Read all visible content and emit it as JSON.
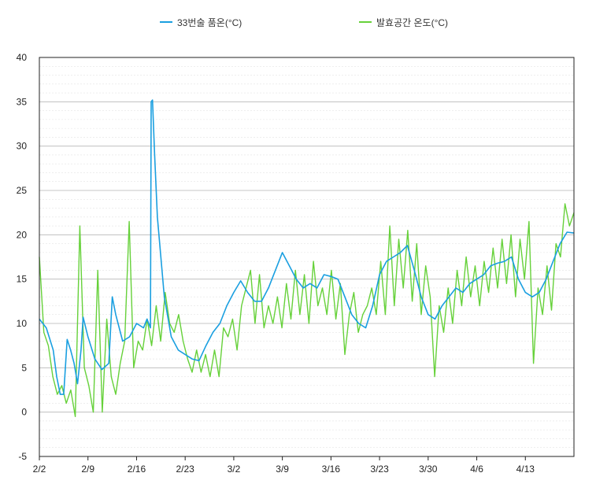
{
  "chart_data": {
    "type": "line",
    "title": "",
    "xlabel": "",
    "ylabel": "",
    "ylim": [
      -5,
      40
    ],
    "yticks": [
      -5,
      0,
      5,
      10,
      15,
      20,
      25,
      30,
      35,
      40
    ],
    "minor_grid_step": 1,
    "grid": true,
    "legend_position": "top",
    "x_domain": [
      "2/2",
      "4/20"
    ],
    "xtick_labels": [
      "2/2",
      "2/9",
      "2/16",
      "2/23",
      "3/2",
      "3/9",
      "3/16",
      "3/23",
      "3/30",
      "4/6",
      "4/13"
    ],
    "series": [
      {
        "name": "33번술 품온(°C)",
        "color": "#1a9fe0",
        "points": [
          [
            "2/2",
            10.5
          ],
          [
            "2/3",
            9.5
          ],
          [
            "2/4",
            7.0
          ],
          [
            "2/4.5",
            4.0
          ],
          [
            "2/5",
            2.0
          ],
          [
            "2/5.5",
            2.0
          ],
          [
            "2/6",
            8.2
          ],
          [
            "2/6.5",
            7.0
          ],
          [
            "2/7",
            5.5
          ],
          [
            "2/7.5",
            3.2
          ],
          [
            "2/8",
            7.0
          ],
          [
            "2/8.3",
            10.7
          ],
          [
            "2/9",
            8.5
          ],
          [
            "2/10",
            6.0
          ],
          [
            "2/11",
            4.8
          ],
          [
            "2/12",
            5.5
          ],
          [
            "2/12.5",
            13.0
          ],
          [
            "2/13",
            11.0
          ],
          [
            "2/14",
            8.0
          ],
          [
            "2/15",
            8.5
          ],
          [
            "2/16",
            10.0
          ],
          [
            "2/17",
            9.5
          ],
          [
            "2/17.5",
            10.5
          ],
          [
            "2/18",
            9.5
          ],
          [
            "2/18.1",
            35.0
          ],
          [
            "2/18.3",
            35.2
          ],
          [
            "2/18.6",
            29.0
          ],
          [
            "2/19",
            22.0
          ],
          [
            "2/20",
            13.0
          ],
          [
            "2/21",
            8.5
          ],
          [
            "2/22",
            7.0
          ],
          [
            "2/23",
            6.5
          ],
          [
            "2/24",
            6.0
          ],
          [
            "2/25",
            5.8
          ],
          [
            "2/26",
            7.5
          ],
          [
            "2/27",
            9.0
          ],
          [
            "2/28",
            10.0
          ],
          [
            "3/1",
            12.0
          ],
          [
            "3/2",
            13.5
          ],
          [
            "3/3",
            14.8
          ],
          [
            "3/4",
            13.5
          ],
          [
            "3/5",
            12.5
          ],
          [
            "3/6",
            12.5
          ],
          [
            "3/7",
            14.0
          ],
          [
            "3/8",
            16.0
          ],
          [
            "3/9",
            18.0
          ],
          [
            "3/10",
            16.5
          ],
          [
            "3/11",
            15.0
          ],
          [
            "3/12",
            14.0
          ],
          [
            "3/13",
            14.5
          ],
          [
            "3/14",
            14.0
          ],
          [
            "3/15",
            15.5
          ],
          [
            "3/16",
            15.3
          ],
          [
            "3/17",
            15.0
          ],
          [
            "3/18",
            13.0
          ],
          [
            "3/19",
            11.0
          ],
          [
            "3/20",
            10.0
          ],
          [
            "3/21",
            9.5
          ],
          [
            "3/22",
            12.0
          ],
          [
            "3/23",
            15.5
          ],
          [
            "3/24",
            17.0
          ],
          [
            "3/25",
            17.5
          ],
          [
            "3/26",
            18.0
          ],
          [
            "3/27",
            18.8
          ],
          [
            "3/28",
            16.0
          ],
          [
            "3/29",
            13.0
          ],
          [
            "3/30",
            11.0
          ],
          [
            "3/31",
            10.5
          ],
          [
            "4/1",
            12.0
          ],
          [
            "4/2",
            13.0
          ],
          [
            "4/3",
            14.0
          ],
          [
            "4/4",
            13.5
          ],
          [
            "4/5",
            14.5
          ],
          [
            "4/6",
            15.0
          ],
          [
            "4/7",
            15.5
          ],
          [
            "4/8",
            16.5
          ],
          [
            "4/9",
            16.8
          ],
          [
            "4/10",
            17.0
          ],
          [
            "4/11",
            17.5
          ],
          [
            "4/12",
            15.0
          ],
          [
            "4/13",
            13.5
          ],
          [
            "4/14",
            13.0
          ],
          [
            "4/15",
            13.5
          ],
          [
            "4/16",
            15.0
          ],
          [
            "4/17",
            17.0
          ],
          [
            "4/18",
            19.0
          ],
          [
            "4/19",
            20.3
          ],
          [
            "4/20",
            20.2
          ]
        ]
      },
      {
        "name": "발효공간 온도(°C)",
        "color": "#66d13a",
        "values_daily_twice": [
          17.5,
          9.0,
          7.5,
          4.0,
          2.0,
          3.0,
          1.0,
          2.5,
          -0.5,
          21.0,
          5.0,
          3.0,
          0.0,
          16.0,
          0.0,
          10.5,
          4.0,
          2.0,
          5.5,
          8.0,
          21.5,
          5.0,
          8.0,
          7.0,
          10.5,
          7.5,
          12.0,
          8.0,
          13.5,
          10.0,
          9.0,
          11.0,
          8.0,
          6.0,
          4.5,
          7.0,
          4.5,
          6.5,
          4.0,
          7.0,
          4.0,
          9.5,
          8.5,
          10.5,
          7.0,
          12.0,
          14.0,
          16.0,
          10.0,
          15.5,
          9.5,
          12.0,
          10.0,
          13.0,
          9.5,
          14.5,
          10.5,
          16.0,
          11.0,
          15.5,
          10.0,
          17.0,
          12.0,
          14.0,
          11.0,
          16.0,
          10.5,
          14.5,
          6.5,
          11.0,
          13.5,
          9.0,
          11.0,
          12.0,
          14.0,
          11.0,
          17.0,
          11.0,
          21.0,
          12.0,
          19.5,
          14.0,
          20.5,
          12.5,
          19.0,
          11.0,
          16.5,
          13.0,
          4.0,
          12.0,
          9.0,
          14.0,
          10.0,
          16.0,
          12.0,
          17.5,
          13.0,
          16.5,
          12.0,
          17.0,
          13.5,
          18.5,
          14.0,
          19.5,
          14.5,
          20.0,
          13.0,
          19.5,
          15.0,
          21.5,
          5.5,
          14.0,
          11.0,
          16.5,
          11.5,
          19.0,
          17.5,
          23.5,
          21.0,
          22.5
        ]
      }
    ]
  }
}
